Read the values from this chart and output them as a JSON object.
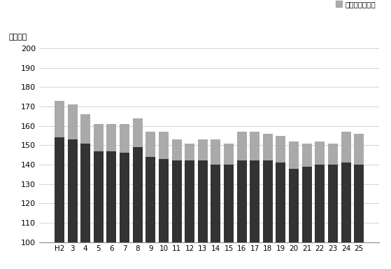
{
  "categories": [
    "H2",
    "3",
    "4",
    "5",
    "6",
    "7",
    "8",
    "9",
    "10",
    "11",
    "12",
    "13",
    "14",
    "15",
    "16",
    "17",
    "18",
    "19",
    "20",
    "21",
    "22",
    "23",
    "24",
    "25"
  ],
  "scheduled": [
    154,
    153,
    151,
    147,
    147,
    146,
    149,
    144,
    143,
    142,
    142,
    142,
    140,
    140,
    142,
    142,
    142,
    141,
    138,
    139,
    140,
    140,
    141,
    140
  ],
  "overtime": [
    19,
    18,
    15,
    14,
    14,
    15,
    15,
    13,
    14,
    11,
    9,
    11,
    13,
    11,
    15,
    15,
    14,
    14,
    14,
    12,
    12,
    11,
    16,
    16
  ],
  "ylim": [
    100,
    200
  ],
  "yticks": [
    100,
    110,
    120,
    130,
    140,
    150,
    160,
    170,
    180,
    190,
    200
  ],
  "ylabel": "（時間）",
  "bar_color_scheduled": "#333333",
  "bar_color_overtime": "#aaaaaa",
  "legend_overtime": "所定外労働時間",
  "grid_color": "#cccccc",
  "background_color": "#ffffff"
}
